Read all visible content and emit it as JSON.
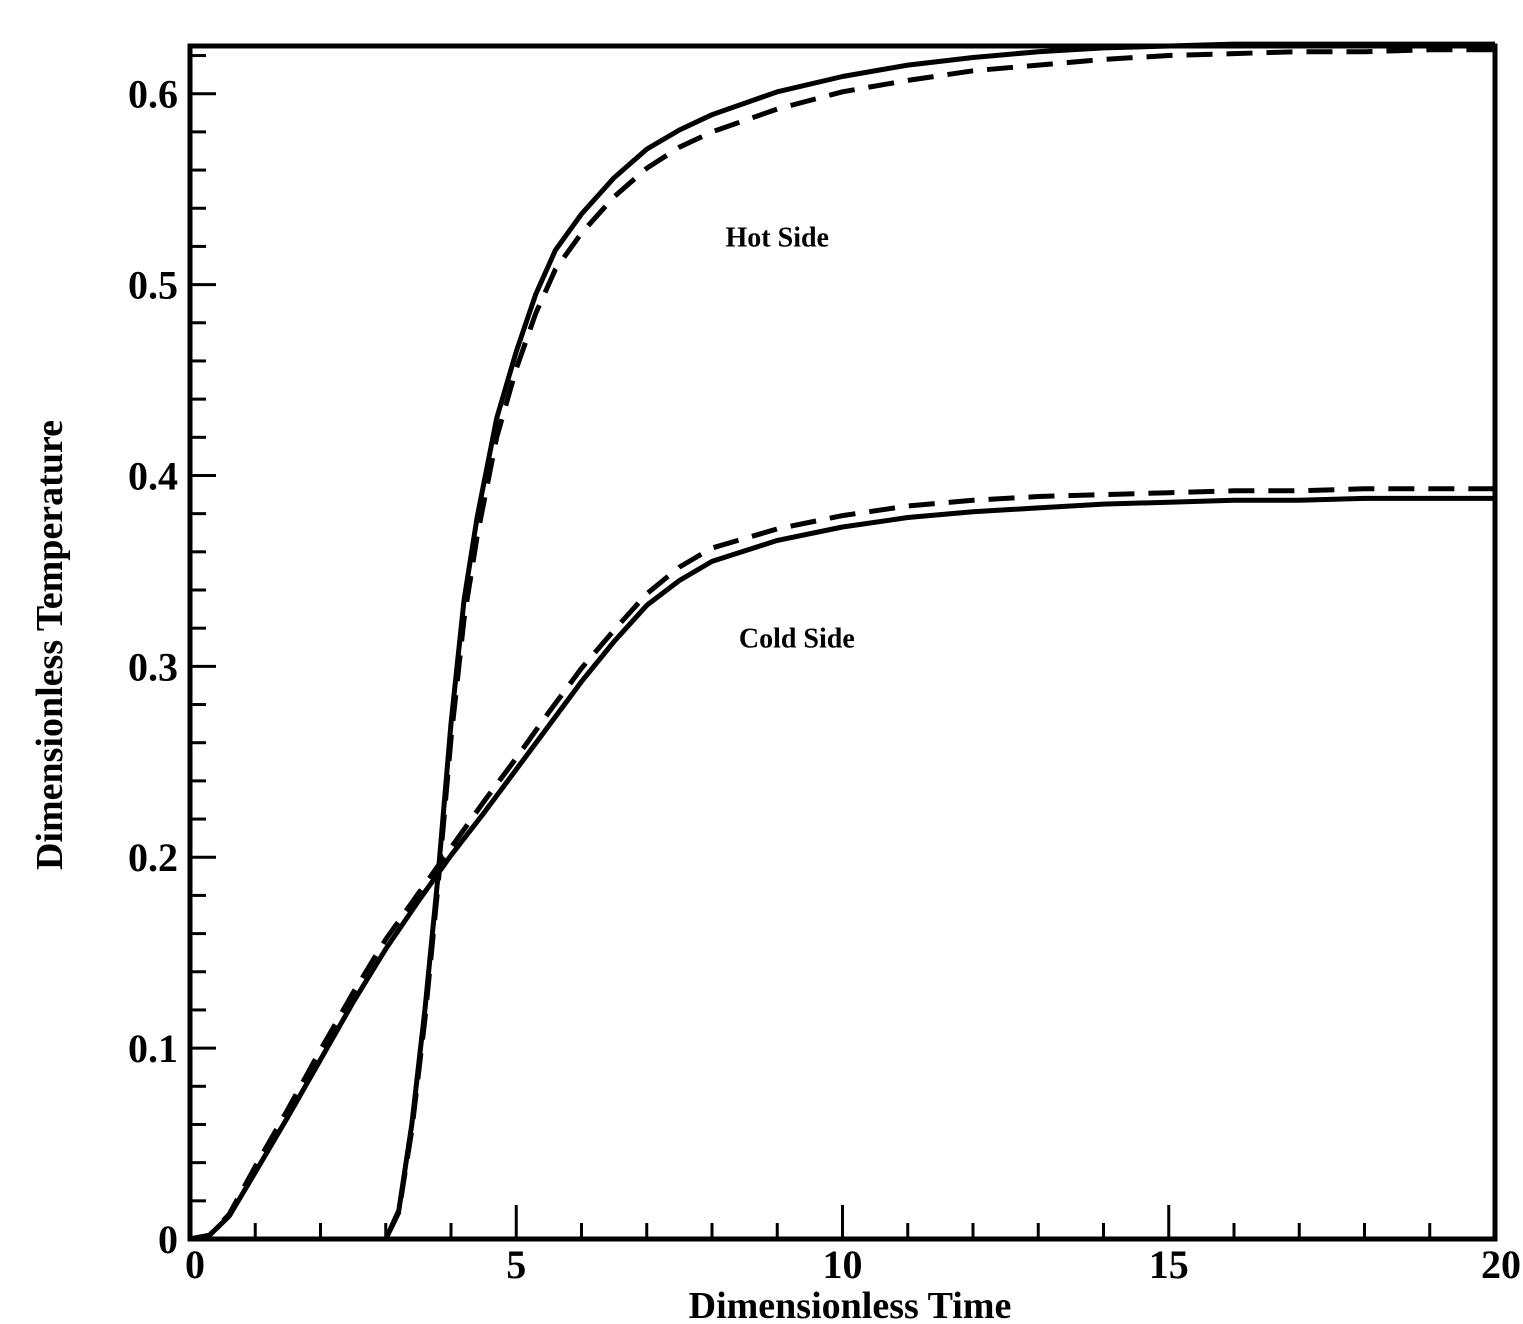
{
  "chart_data": {
    "type": "line",
    "title": "",
    "xlabel": "Dimensionless Time",
    "ylabel": "Dimensionless Temperature",
    "xlim": [
      0,
      20
    ],
    "ylim": [
      0,
      0.625
    ],
    "x_ticks": [
      "0",
      "5",
      "10",
      "15",
      "20"
    ],
    "y_ticks": [
      "0",
      "0.1",
      "0.2",
      "0.3",
      "0.4",
      "0.5",
      "0.6"
    ],
    "grid": false,
    "legend": "none",
    "line_color": "#000000",
    "annotations": [
      {
        "text": "Hot Side",
        "x": 9,
        "y": 0.52
      },
      {
        "text": "Cold Side",
        "x": 9.3,
        "y": 0.31
      }
    ],
    "series": [
      {
        "style": "solid",
        "x": [
          0,
          0.3,
          0.6,
          1,
          1.5,
          2,
          2.5,
          3,
          3.5,
          4,
          4.5,
          5,
          5.5,
          6,
          6.5,
          7,
          7.5,
          8,
          9,
          10,
          11,
          12,
          13,
          14,
          15,
          16,
          17,
          18,
          19,
          20
        ],
        "y": [
          0,
          0.002,
          0.012,
          0.035,
          0.064,
          0.094,
          0.124,
          0.152,
          0.177,
          0.201,
          0.223,
          0.246,
          0.269,
          0.292,
          0.313,
          0.332,
          0.345,
          0.355,
          0.366,
          0.373,
          0.378,
          0.381,
          0.383,
          0.385,
          0.386,
          0.387,
          0.387,
          0.388,
          0.388,
          0.388
        ]
      },
      {
        "style": "dashed",
        "x": [
          0,
          0.3,
          0.6,
          1,
          1.5,
          2,
          2.5,
          3,
          3.5,
          4,
          4.5,
          5,
          5.5,
          6,
          6.5,
          7,
          7.5,
          8,
          9,
          10,
          11,
          12,
          13,
          14,
          15,
          16,
          17,
          18,
          19,
          20
        ],
        "y": [
          0,
          0.002,
          0.013,
          0.038,
          0.068,
          0.099,
          0.129,
          0.157,
          0.181,
          0.205,
          0.229,
          0.252,
          0.276,
          0.299,
          0.319,
          0.338,
          0.352,
          0.362,
          0.372,
          0.379,
          0.384,
          0.387,
          0.389,
          0.39,
          0.391,
          0.392,
          0.392,
          0.393,
          0.393,
          0.393
        ]
      },
      {
        "style": "solid",
        "x": [
          0,
          3,
          3.2,
          3.4,
          3.6,
          3.8,
          4,
          4.2,
          4.4,
          4.7,
          5,
          5.3,
          5.6,
          6,
          6.5,
          7,
          7.5,
          8,
          9,
          10,
          11,
          12,
          13,
          14,
          15,
          16,
          17,
          18,
          19,
          20
        ],
        "y": [
          0,
          0,
          0.015,
          0.06,
          0.12,
          0.19,
          0.27,
          0.335,
          0.378,
          0.43,
          0.465,
          0.495,
          0.518,
          0.537,
          0.556,
          0.571,
          0.581,
          0.589,
          0.601,
          0.609,
          0.615,
          0.619,
          0.622,
          0.624,
          0.625,
          0.626,
          0.626,
          0.626,
          0.626,
          0.626
        ]
      },
      {
        "style": "dashed",
        "x": [
          0,
          3,
          3.2,
          3.4,
          3.6,
          3.8,
          4,
          4.2,
          4.4,
          4.7,
          5,
          5.3,
          5.6,
          6,
          6.5,
          7,
          7.5,
          8,
          9,
          10,
          11,
          12,
          13,
          14,
          15,
          16,
          17,
          18,
          19,
          20
        ],
        "y": [
          0,
          0,
          0.014,
          0.057,
          0.115,
          0.185,
          0.262,
          0.325,
          0.368,
          0.42,
          0.456,
          0.485,
          0.508,
          0.527,
          0.546,
          0.561,
          0.572,
          0.58,
          0.592,
          0.601,
          0.607,
          0.612,
          0.615,
          0.618,
          0.62,
          0.621,
          0.622,
          0.622,
          0.623,
          0.623
        ]
      }
    ]
  }
}
